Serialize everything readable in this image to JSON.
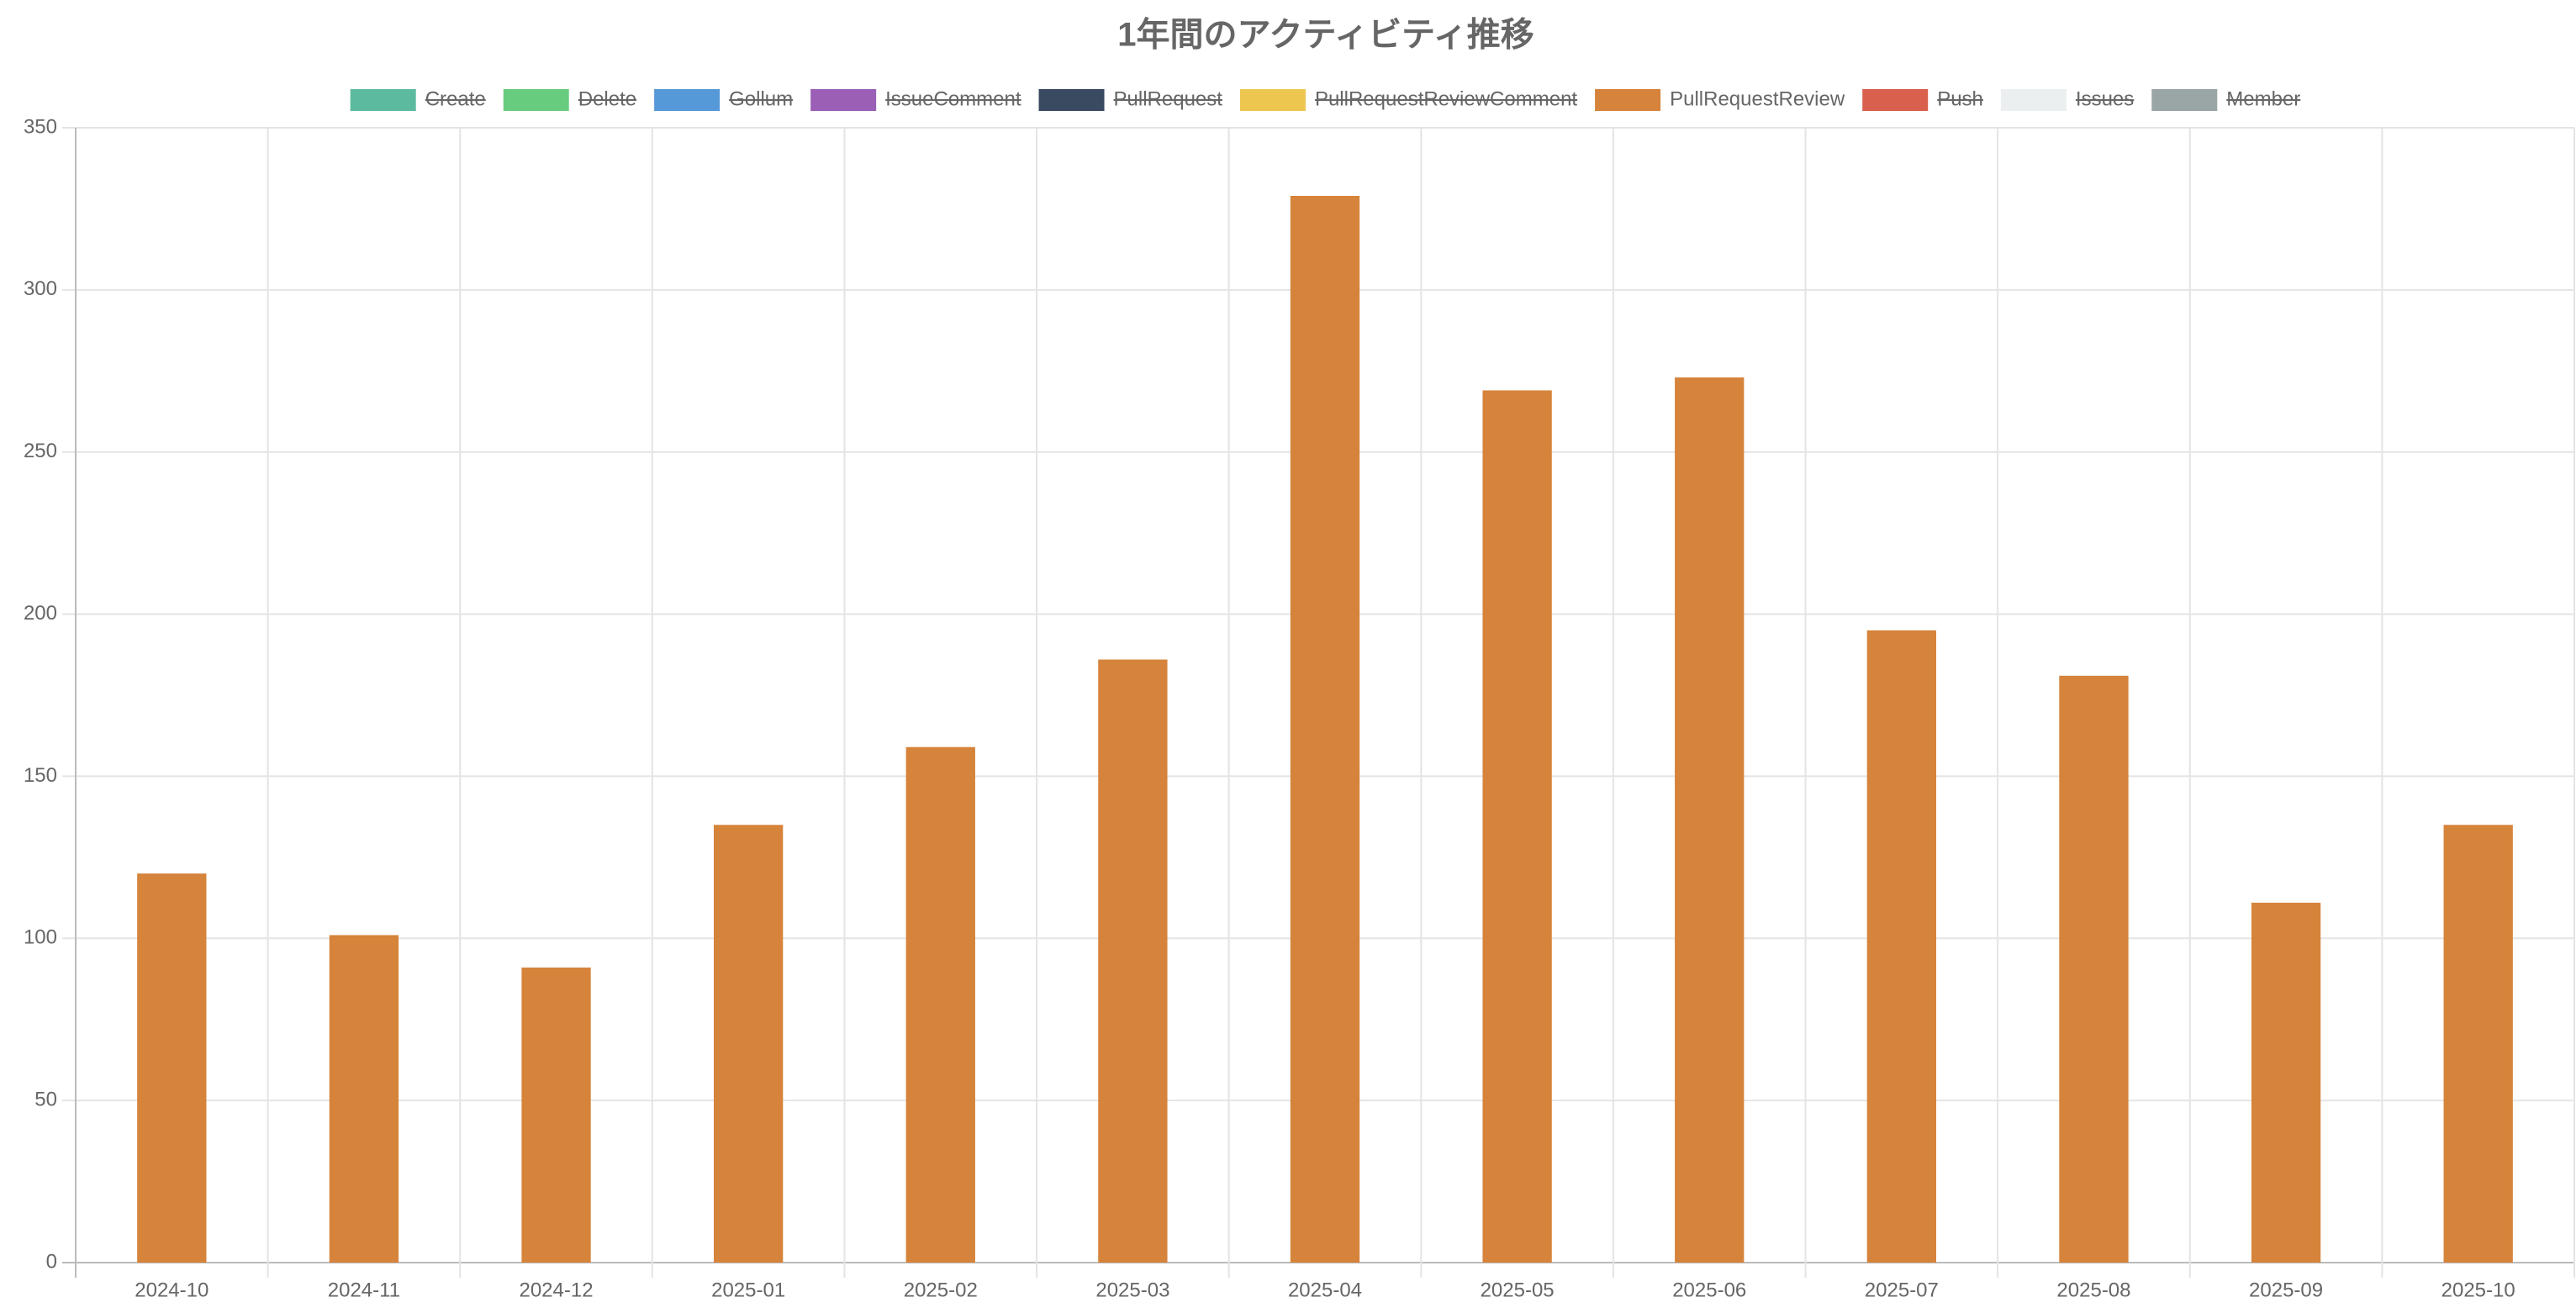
{
  "chart_data": {
    "type": "bar",
    "title": "1年間のアクティビティ推移",
    "categories": [
      "2024-10",
      "2024-11",
      "2024-12",
      "2025-01",
      "2025-02",
      "2025-03",
      "2025-04",
      "2025-05",
      "2025-06",
      "2025-07",
      "2025-08",
      "2025-09",
      "2025-10"
    ],
    "series": [
      {
        "name": "Create",
        "color": "#5cbb9f",
        "hidden": true,
        "values": [
          null,
          null,
          null,
          null,
          null,
          null,
          null,
          null,
          null,
          null,
          null,
          null,
          null
        ]
      },
      {
        "name": "Delete",
        "color": "#68cc7e",
        "hidden": true,
        "values": [
          null,
          null,
          null,
          null,
          null,
          null,
          null,
          null,
          null,
          null,
          null,
          null,
          null
        ]
      },
      {
        "name": "Gollum",
        "color": "#5699d8",
        "hidden": true,
        "values": [
          null,
          null,
          null,
          null,
          null,
          null,
          null,
          null,
          null,
          null,
          null,
          null,
          null
        ]
      },
      {
        "name": "IssueComment",
        "color": "#9b5fb6",
        "hidden": true,
        "values": [
          null,
          null,
          null,
          null,
          null,
          null,
          null,
          null,
          null,
          null,
          null,
          null,
          null
        ]
      },
      {
        "name": "PullRequest",
        "color": "#3a4a60",
        "hidden": true,
        "values": [
          null,
          null,
          null,
          null,
          null,
          null,
          null,
          null,
          null,
          null,
          null,
          null,
          null
        ]
      },
      {
        "name": "PullRequestReviewComment",
        "color": "#ecc64e",
        "hidden": true,
        "values": [
          null,
          null,
          null,
          null,
          null,
          null,
          null,
          null,
          null,
          null,
          null,
          null,
          null
        ]
      },
      {
        "name": "PullRequestReview",
        "color": "#d6833b",
        "hidden": false,
        "values": [
          120,
          101,
          91,
          135,
          159,
          186,
          329,
          269,
          273,
          195,
          181,
          111,
          135
        ]
      },
      {
        "name": "Push",
        "color": "#d9604c",
        "hidden": true,
        "values": [
          null,
          null,
          null,
          null,
          null,
          null,
          null,
          null,
          null,
          null,
          null,
          null,
          null
        ]
      },
      {
        "name": "Issues",
        "color": "#eceff0",
        "hidden": true,
        "values": [
          null,
          null,
          null,
          null,
          null,
          null,
          null,
          null,
          null,
          null,
          null,
          null,
          null
        ]
      },
      {
        "name": "Member",
        "color": "#9aa5a6",
        "hidden": true,
        "values": [
          null,
          null,
          null,
          null,
          null,
          null,
          null,
          null,
          null,
          null,
          null,
          null,
          null
        ]
      }
    ],
    "stacked": true,
    "ylim": [
      0,
      350
    ],
    "yticks": [
      0,
      50,
      100,
      150,
      200,
      250,
      300,
      350
    ],
    "grid": true,
    "legend": "top"
  }
}
